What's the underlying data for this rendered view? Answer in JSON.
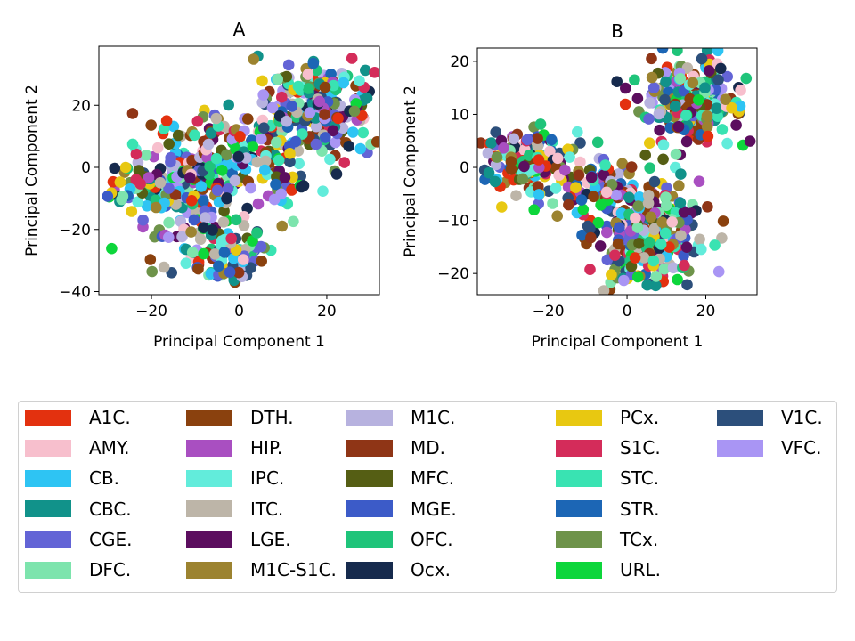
{
  "chart_data": [
    {
      "type": "scatter",
      "title": "A",
      "xlabel": "Principal Component 1",
      "ylabel": "Principal Component 2",
      "xlim": [
        -32,
        32
      ],
      "ylim": [
        -41,
        39
      ],
      "xticks": [
        -20,
        0,
        20
      ],
      "yticks": [
        -40,
        -20,
        0,
        20
      ],
      "grid": false,
      "clusters": [
        {
          "cx": -12,
          "cy": -3,
          "sx": 8,
          "sy": 8,
          "n": 260
        },
        {
          "cx": 2,
          "cy": 6,
          "sx": 6,
          "sy": 6,
          "n": 70
        },
        {
          "cx": 18,
          "cy": 18,
          "sx": 7,
          "sy": 9,
          "n": 230
        },
        {
          "cx": -3,
          "cy": -28,
          "sx": 5,
          "sy": 5,
          "n": 110
        },
        {
          "cx": -27,
          "cy": -9,
          "sx": 1.5,
          "sy": 1,
          "n": 8
        },
        {
          "cx": 9,
          "cy": -6,
          "sx": 3,
          "sy": 6,
          "n": 25
        }
      ]
    },
    {
      "type": "scatter",
      "title": "B",
      "xlabel": "Principal Component 1",
      "ylabel": "Principal Component 2",
      "xlim": [
        -38,
        33
      ],
      "ylim": [
        -24,
        22.5
      ],
      "xticks": [
        -20,
        0,
        20
      ],
      "yticks": [
        -20,
        -10,
        0,
        10,
        20
      ],
      "grid": false,
      "clusters": [
        {
          "cx": -25,
          "cy": 1,
          "sx": 5,
          "sy": 3,
          "n": 170
        },
        {
          "cx": -7,
          "cy": -4,
          "sx": 5,
          "sy": 3,
          "n": 70
        },
        {
          "cx": 4,
          "cy": -13,
          "sx": 6,
          "sy": 5,
          "n": 250
        },
        {
          "cx": 16,
          "cy": 12,
          "sx": 7,
          "sy": 4,
          "n": 240
        },
        {
          "cx": 12,
          "cy": -11,
          "sx": 4,
          "sy": 4,
          "n": 50
        }
      ]
    }
  ],
  "legend": [
    {
      "label": "A1C.",
      "color": "#e3310f"
    },
    {
      "label": "AMY.",
      "color": "#f7bfcd"
    },
    {
      "label": "CB.",
      "color": "#2ec4f3"
    },
    {
      "label": "CBC.",
      "color": "#11928a"
    },
    {
      "label": "CGE.",
      "color": "#6364d6"
    },
    {
      "label": "DFC.",
      "color": "#7de4ad"
    },
    {
      "label": "DTH.",
      "color": "#8a410e"
    },
    {
      "label": "HIP.",
      "color": "#a94fc1"
    },
    {
      "label": "IPC.",
      "color": "#62ecdb"
    },
    {
      "label": "ITC.",
      "color": "#bdb5a8"
    },
    {
      "label": "LGE.",
      "color": "#5c0e5f"
    },
    {
      "label": "M1C-S1C.",
      "color": "#9c8330"
    },
    {
      "label": "M1C.",
      "color": "#b7b2df"
    },
    {
      "label": "MD.",
      "color": "#8f3516"
    },
    {
      "label": "MFC.",
      "color": "#555e14"
    },
    {
      "label": "MGE.",
      "color": "#3c5bc8"
    },
    {
      "label": "OFC.",
      "color": "#1fc47a"
    },
    {
      "label": "Ocx.",
      "color": "#162a4d"
    },
    {
      "label": "PCx.",
      "color": "#e8c811"
    },
    {
      "label": "S1C.",
      "color": "#d42c5a"
    },
    {
      "label": "STC.",
      "color": "#39e3b2"
    },
    {
      "label": "STR.",
      "color": "#1c66b5"
    },
    {
      "label": "TCx.",
      "color": "#6e934a"
    },
    {
      "label": "URL.",
      "color": "#0dd63b"
    },
    {
      "label": "V1C.",
      "color": "#2c4f7b"
    },
    {
      "label": "VFC.",
      "color": "#a995f4"
    }
  ]
}
